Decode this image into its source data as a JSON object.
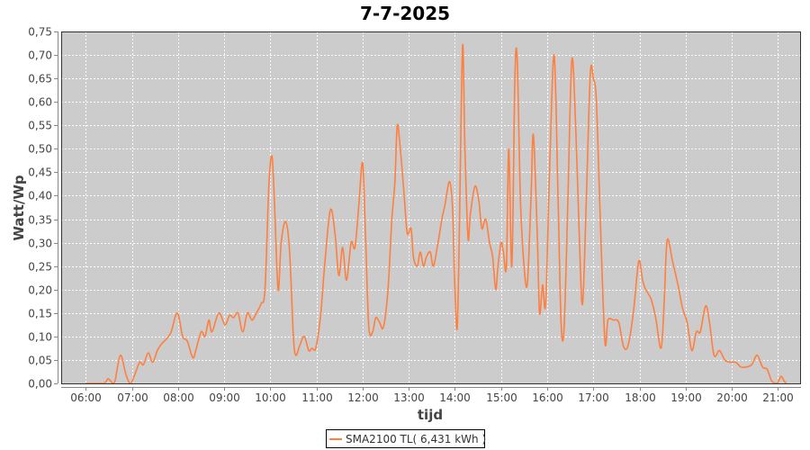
{
  "chart_data": {
    "type": "line",
    "title": "7-7-2025",
    "xlabel": "tijd",
    "ylabel": "Watt/Wp",
    "xlim": [
      "05:28",
      "21:30"
    ],
    "ylim": [
      0,
      0.75
    ],
    "grid": true,
    "legend_position": "bottom",
    "background_color": "#cccccc",
    "grid_color": "#ffffff",
    "x_ticks": [
      "06:00",
      "07:00",
      "08:00",
      "09:00",
      "10:00",
      "11:00",
      "12:00",
      "13:00",
      "14:00",
      "15:00",
      "16:00",
      "17:00",
      "18:00",
      "19:00",
      "20:00",
      "21:00"
    ],
    "y_ticks": [
      "0,00",
      "0,05",
      "0,10",
      "0,15",
      "0,20",
      "0,25",
      "0,30",
      "0,35",
      "0,40",
      "0,45",
      "0,50",
      "0,55",
      "0,60",
      "0,65",
      "0,70",
      "0,75"
    ],
    "y_tick_values": [
      0,
      0.05,
      0.1,
      0.15,
      0.2,
      0.25,
      0.3,
      0.35,
      0.4,
      0.45,
      0.5,
      0.55,
      0.6,
      0.65,
      0.7,
      0.75
    ],
    "series": [
      {
        "name": "SMA2100 TL( 6,431 kWh )",
        "color": "#ff7f3f",
        "points": [
          [
            "06:00",
            0
          ],
          [
            "06:23",
            0
          ],
          [
            "06:29",
            0.01
          ],
          [
            "06:35",
            0
          ],
          [
            "06:38",
            0.005
          ],
          [
            "06:45",
            0.06
          ],
          [
            "06:52",
            0.02
          ],
          [
            "06:58",
            0
          ],
          [
            "07:04",
            0.02
          ],
          [
            "07:10",
            0.045
          ],
          [
            "07:15",
            0.04
          ],
          [
            "07:21",
            0.065
          ],
          [
            "07:27",
            0.045
          ],
          [
            "07:33",
            0.07
          ],
          [
            "07:39",
            0.085
          ],
          [
            "07:45",
            0.095
          ],
          [
            "07:51",
            0.11
          ],
          [
            "07:59",
            0.15
          ],
          [
            "08:06",
            0.1
          ],
          [
            "08:12",
            0.09
          ],
          [
            "08:19",
            0.055
          ],
          [
            "08:23",
            0.07
          ],
          [
            "08:30",
            0.11
          ],
          [
            "08:35",
            0.1
          ],
          [
            "08:40",
            0.135
          ],
          [
            "08:44",
            0.11
          ],
          [
            "08:53",
            0.15
          ],
          [
            "09:01",
            0.125
          ],
          [
            "09:07",
            0.145
          ],
          [
            "09:12",
            0.14
          ],
          [
            "09:18",
            0.15
          ],
          [
            "09:24",
            0.11
          ],
          [
            "09:30",
            0.15
          ],
          [
            "09:36",
            0.135
          ],
          [
            "09:42",
            0.15
          ],
          [
            "09:48",
            0.17
          ],
          [
            "09:53",
            0.2
          ],
          [
            "09:58",
            0.42
          ],
          [
            "10:02",
            0.485
          ],
          [
            "10:05",
            0.4
          ],
          [
            "10:10",
            0.2
          ],
          [
            "10:14",
            0.3
          ],
          [
            "10:20",
            0.345
          ],
          [
            "10:25",
            0.28
          ],
          [
            "10:30",
            0.1
          ],
          [
            "10:33",
            0.06
          ],
          [
            "10:38",
            0.08
          ],
          [
            "10:44",
            0.1
          ],
          [
            "10:50",
            0.07
          ],
          [
            "10:54",
            0.075
          ],
          [
            "10:59",
            0.075
          ],
          [
            "11:05",
            0.14
          ],
          [
            "11:11",
            0.26
          ],
          [
            "11:18",
            0.37
          ],
          [
            "11:24",
            0.32
          ],
          [
            "11:29",
            0.23
          ],
          [
            "11:34",
            0.29
          ],
          [
            "11:39",
            0.22
          ],
          [
            "11:45",
            0.3
          ],
          [
            "11:50",
            0.29
          ],
          [
            "11:55",
            0.38
          ],
          [
            "12:00",
            0.47
          ],
          [
            "12:04",
            0.3
          ],
          [
            "12:08",
            0.12
          ],
          [
            "12:13",
            0.11
          ],
          [
            "12:17",
            0.14
          ],
          [
            "12:22",
            0.13
          ],
          [
            "12:27",
            0.12
          ],
          [
            "12:33",
            0.2
          ],
          [
            "12:38",
            0.35
          ],
          [
            "12:42",
            0.43
          ],
          [
            "12:45",
            0.55
          ],
          [
            "12:49",
            0.5
          ],
          [
            "12:54",
            0.4
          ],
          [
            "12:58",
            0.32
          ],
          [
            "13:03",
            0.33
          ],
          [
            "13:06",
            0.27
          ],
          [
            "13:11",
            0.25
          ],
          [
            "13:15",
            0.28
          ],
          [
            "13:19",
            0.25
          ],
          [
            "13:23",
            0.27
          ],
          [
            "13:28",
            0.28
          ],
          [
            "13:32",
            0.25
          ],
          [
            "13:38",
            0.3
          ],
          [
            "13:43",
            0.35
          ],
          [
            "13:47",
            0.38
          ],
          [
            "13:53",
            0.43
          ],
          [
            "13:57",
            0.37
          ],
          [
            "14:00",
            0.2
          ],
          [
            "14:03",
            0.12
          ],
          [
            "14:06",
            0.35
          ],
          [
            "14:10",
            0.72
          ],
          [
            "14:13",
            0.5
          ],
          [
            "14:17",
            0.31
          ],
          [
            "14:20",
            0.36
          ],
          [
            "14:26",
            0.42
          ],
          [
            "14:31",
            0.39
          ],
          [
            "14:35",
            0.33
          ],
          [
            "14:40",
            0.35
          ],
          [
            "14:45",
            0.3
          ],
          [
            "14:49",
            0.27
          ],
          [
            "14:53",
            0.2
          ],
          [
            "14:56",
            0.25
          ],
          [
            "15:00",
            0.3
          ],
          [
            "15:03",
            0.28
          ],
          [
            "15:07",
            0.25
          ],
          [
            "15:10",
            0.5
          ],
          [
            "15:14",
            0.25
          ],
          [
            "15:18",
            0.65
          ],
          [
            "15:21",
            0.69
          ],
          [
            "15:25",
            0.4
          ],
          [
            "15:29",
            0.27
          ],
          [
            "15:34",
            0.21
          ],
          [
            "15:39",
            0.4
          ],
          [
            "15:42",
            0.53
          ],
          [
            "15:47",
            0.32
          ],
          [
            "15:50",
            0.15
          ],
          [
            "15:54",
            0.21
          ],
          [
            "15:58",
            0.17
          ],
          [
            "16:03",
            0.45
          ],
          [
            "16:09",
            0.7
          ],
          [
            "16:14",
            0.4
          ],
          [
            "16:18",
            0.13
          ],
          [
            "16:22",
            0.12
          ],
          [
            "16:27",
            0.4
          ],
          [
            "16:32",
            0.69
          ],
          [
            "16:37",
            0.55
          ],
          [
            "16:42",
            0.3
          ],
          [
            "16:46",
            0.17
          ],
          [
            "16:51",
            0.4
          ],
          [
            "16:56",
            0.66
          ],
          [
            "17:00",
            0.65
          ],
          [
            "17:04",
            0.6
          ],
          [
            "17:09",
            0.35
          ],
          [
            "17:15",
            0.09
          ],
          [
            "17:19",
            0.135
          ],
          [
            "17:26",
            0.135
          ],
          [
            "17:33",
            0.13
          ],
          [
            "17:39",
            0.08
          ],
          [
            "17:45",
            0.08
          ],
          [
            "17:52",
            0.15
          ],
          [
            "17:59",
            0.26
          ],
          [
            "18:04",
            0.22
          ],
          [
            "18:08",
            0.2
          ],
          [
            "18:15",
            0.18
          ],
          [
            "18:21",
            0.14
          ],
          [
            "18:28",
            0.075
          ],
          [
            "18:32",
            0.17
          ],
          [
            "18:36",
            0.305
          ],
          [
            "18:43",
            0.26
          ],
          [
            "18:50",
            0.21
          ],
          [
            "18:56",
            0.16
          ],
          [
            "19:02",
            0.13
          ],
          [
            "19:08",
            0.07
          ],
          [
            "19:14",
            0.11
          ],
          [
            "19:19",
            0.11
          ],
          [
            "19:26",
            0.165
          ],
          [
            "19:31",
            0.13
          ],
          [
            "19:37",
            0.06
          ],
          [
            "19:44",
            0.07
          ],
          [
            "19:51",
            0.05
          ],
          [
            "19:58",
            0.045
          ],
          [
            "20:05",
            0.045
          ],
          [
            "20:12",
            0.035
          ],
          [
            "20:19",
            0.035
          ],
          [
            "20:26",
            0.04
          ],
          [
            "20:33",
            0.06
          ],
          [
            "20:40",
            0.035
          ],
          [
            "20:46",
            0.03
          ],
          [
            "20:52",
            0.005
          ],
          [
            "20:59",
            0
          ],
          [
            "21:04",
            0.015
          ],
          [
            "21:08",
            0.005
          ],
          [
            "21:11",
            0
          ]
        ]
      }
    ]
  }
}
